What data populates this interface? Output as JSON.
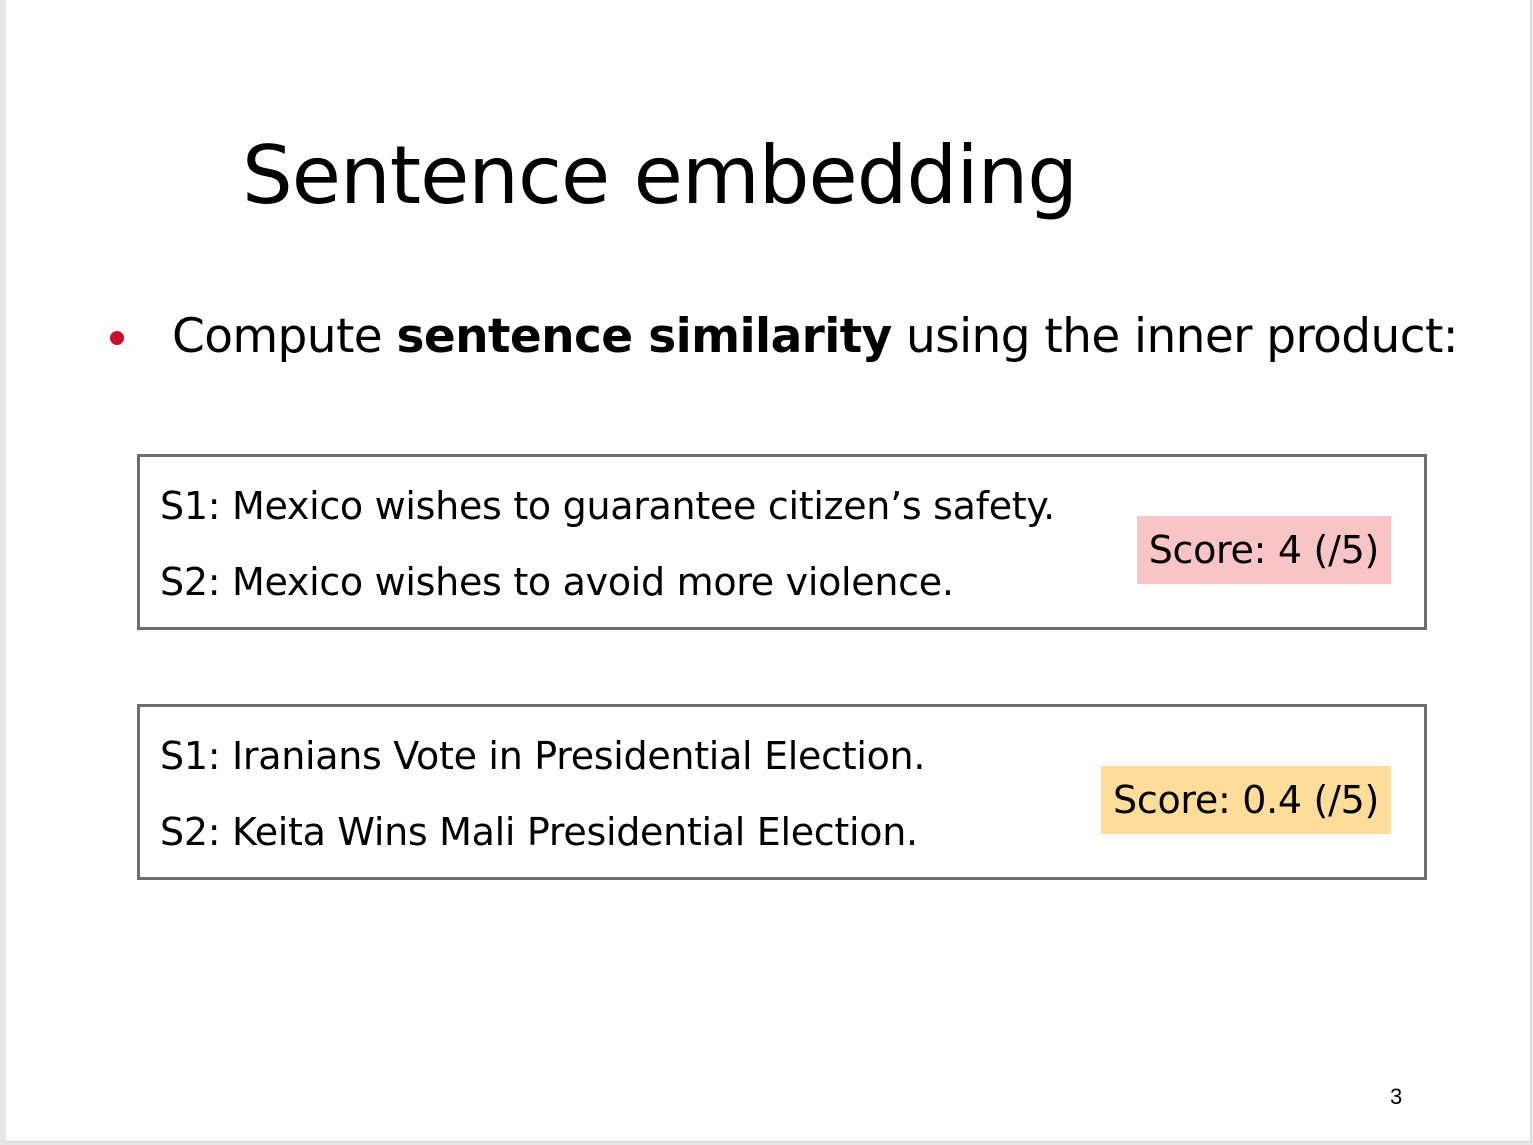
{
  "slide": {
    "title": "Sentence embedding",
    "bullet": {
      "prefix": "Compute ",
      "emphasis": "sentence similarity",
      "suffix": " using the inner product:",
      "bullet_color": "#c8102e"
    },
    "pairs": [
      {
        "s1": "S1: Mexico wishes to guarantee citizen’s safety.",
        "s2": "S2: Mexico wishes to avoid more violence.",
        "score": "Score: 4 (/5)",
        "score_color": "#f9c4c6"
      },
      {
        "s1": "S1: Iranians Vote in Presidential Election.",
        "s2": "S2: Keita Wins Mali Presidential Election.",
        "score": "Score: 0.4 (/5)",
        "score_color": "#fedc9a"
      }
    ],
    "page_number": "3"
  }
}
